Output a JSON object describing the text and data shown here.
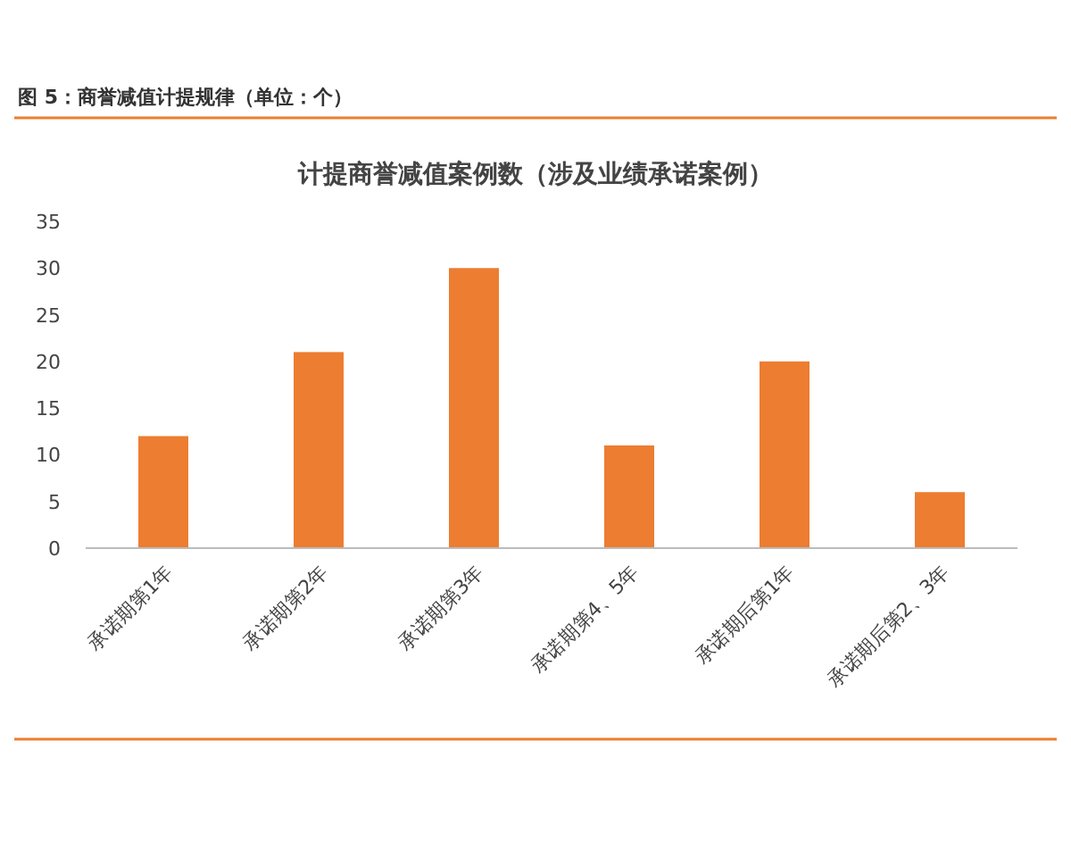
{
  "chart_data": {
    "type": "bar",
    "title": "计提商誉减值案例数（涉及业绩承诺案例）",
    "annotations": [
      "图 5：商誉减值计提规律（单位：个）"
    ],
    "categories": [
      "承诺期第1年",
      "承诺期第2年",
      "承诺期第3年",
      "承诺期第4、5年",
      "承诺期后第1年",
      "承诺期后第2、3年"
    ],
    "values": [
      12,
      21,
      30,
      11,
      20,
      6
    ],
    "color": "#ed7d31",
    "ylim": [
      0,
      35
    ],
    "yticks": [
      0,
      5,
      10,
      15,
      20,
      25,
      30,
      35
    ],
    "grid": false
  }
}
